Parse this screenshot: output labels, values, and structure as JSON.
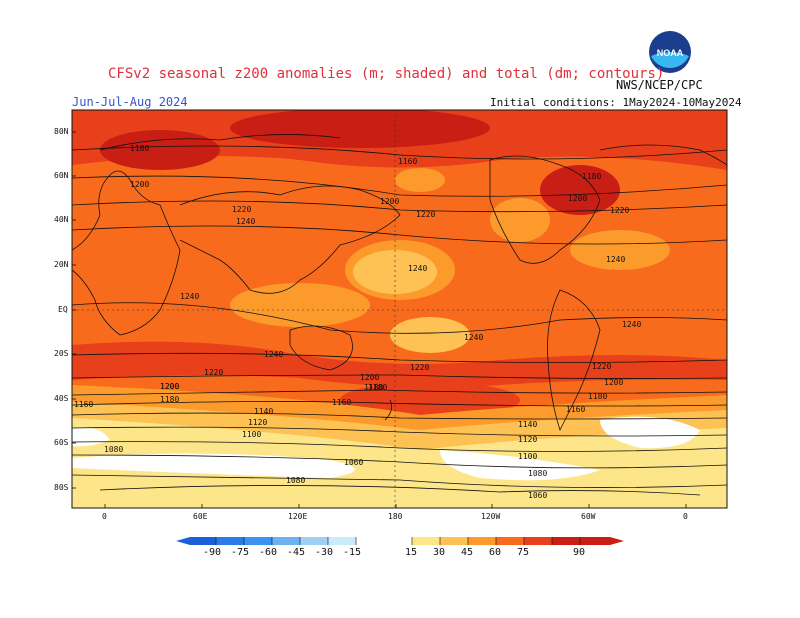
{
  "header": {
    "title": "CFSv2 seasonal z200 anomalies (m; shaded) and total (dm; contours)",
    "season": "Jun-Jul-Aug 2024",
    "initial_conditions": "Initial conditions: 1May2024-10May2024",
    "agency": "NWS/NCEP/CPC",
    "logo_text": "NOAA"
  },
  "map": {
    "lat_labels": [
      "80N",
      "60N",
      "40N",
      "20N",
      "EQ",
      "20S",
      "40S",
      "60S",
      "80S"
    ],
    "lon_labels": [
      "0",
      "60E",
      "120E",
      "180",
      "120W",
      "60W",
      "0"
    ],
    "contour_labels": [
      "1180",
      "1160",
      "1200",
      "1200",
      "1220",
      "1240",
      "1220",
      "1180",
      "1200",
      "1220",
      "1240",
      "1240",
      "1240",
      "1240",
      "1240",
      "1220",
      "1200",
      "1180",
      "1160",
      "1140",
      "1120",
      "1100",
      "1080",
      "1060",
      "1080",
      "1220",
      "1200",
      "1180",
      "1160",
      "1200",
      "1180",
      "1140",
      "1120",
      "1100",
      "1080",
      "1060",
      "1160",
      "1180",
      "1200",
      "1220",
      "1240"
    ]
  },
  "colorbar": {
    "labels": [
      "-90",
      "-75",
      "-60",
      "-45",
      "-30",
      "-15",
      "15",
      "30",
      "45",
      "60",
      "75",
      "90"
    ],
    "colors": [
      "#1a5fd8",
      "#2a7be8",
      "#3d94f0",
      "#6bb2f2",
      "#9fd0f6",
      "#c8ecfb",
      "#ffffff",
      "#fde68a",
      "#fdc253",
      "#fc9a2c",
      "#f96b1c",
      "#e8401a",
      "#c81e14"
    ]
  }
}
